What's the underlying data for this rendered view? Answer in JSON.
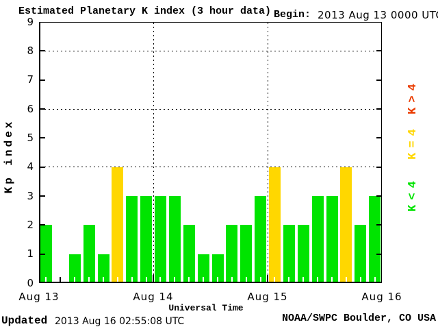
{
  "header": {
    "title": "Estimated Planetary K index (3 hour data)",
    "begin_label": "Begin:",
    "begin_value": "2013 Aug 13 0000 UTC"
  },
  "axes": {
    "y_title": "Kp index",
    "x_title": "Universal Time",
    "y_tick_labels": [
      "9",
      "8",
      "7",
      "6",
      "5",
      "4",
      "3",
      "2",
      "1",
      "0"
    ],
    "x_tick_labels": [
      "Aug 13",
      "Aug 14",
      "Aug 15",
      "Aug 16"
    ]
  },
  "legend": {
    "items": [
      {
        "name": "k-gt-4",
        "label": "K>4",
        "color": "#ea3c00"
      },
      {
        "name": "k-eq-4",
        "label": "K=4",
        "color": "#ffd700"
      },
      {
        "name": "k-lt-4",
        "label": "K<4",
        "color": "#00e400"
      }
    ]
  },
  "footer": {
    "updated_label": "Updated",
    "updated_value": "2013 Aug 16 02:55:08 UTC",
    "credit": "NOAA/SWPC Boulder, CO USA"
  },
  "chart_data": {
    "type": "bar",
    "title": "Estimated Planetary K index (3 hour data)",
    "begin": "2013 Aug 13 0000 UTC",
    "xlabel": "Universal Time",
    "ylabel": "Kp index",
    "ylim": [
      0,
      9
    ],
    "interval_hours": 3,
    "x_axis_tick_labels": [
      "Aug 13",
      "Aug 14",
      "Aug 15",
      "Aug 16"
    ],
    "values": [
      2,
      0,
      1,
      2,
      1,
      4,
      3,
      3,
      3,
      3,
      2,
      1,
      1,
      2,
      2,
      3,
      4,
      2,
      2,
      3,
      3,
      4,
      2,
      3
    ],
    "bar_color_rule": {
      "k_lt_4": "#00e400",
      "k_eq_4": "#ffd700",
      "k_gt_4": "#ea3c00"
    },
    "gridlines_y_dotted": [
      4,
      6,
      8
    ],
    "side_tick_levels": [
      1,
      2,
      3,
      4,
      5,
      6,
      7,
      8
    ],
    "day_boundary_slots": [
      8,
      16
    ]
  }
}
